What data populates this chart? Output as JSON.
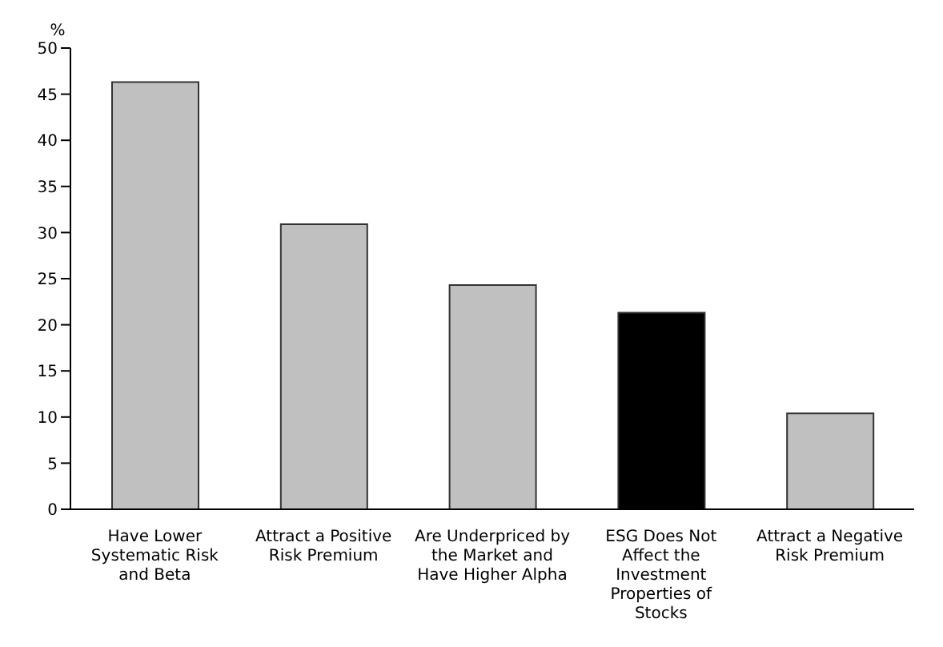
{
  "chart_data": {
    "type": "bar",
    "ylabel": "%",
    "categories": [
      "Have Lower Systematic Risk and Beta",
      "Attract a Positive Risk Premium",
      "Are Underpriced by the Market and Have Higher Alpha",
      "ESG Does Not Affect the Investment Properties of Stocks",
      "Attract a Negative Risk Premium"
    ],
    "values": [
      46.3,
      30.9,
      24.3,
      21.3,
      10.4
    ],
    "colors": [
      "#c0c0c0",
      "#c0c0c0",
      "#c0c0c0",
      "#000000",
      "#c0c0c0"
    ],
    "ylim": [
      0,
      50
    ],
    "yticks": [
      0,
      5,
      10,
      15,
      20,
      25,
      30,
      35,
      40,
      45,
      50
    ],
    "grid": false
  }
}
